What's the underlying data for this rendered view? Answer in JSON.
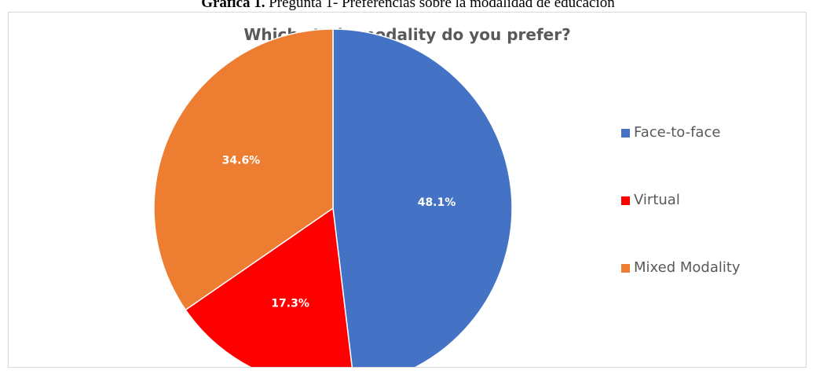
{
  "caption": {
    "bold": "Gráfica 1.",
    "text": " Pregunta 1- Preferencias sobre la modalidad de educación"
  },
  "chart_data": {
    "type": "pie",
    "title": "Which study modality do you prefer?",
    "categories": [
      "Face-to-face",
      "Virtual",
      "Mixed Modality"
    ],
    "values": [
      48.1,
      17.3,
      34.6
    ],
    "labels": [
      "48.1%",
      "17.3%",
      "34.6%"
    ],
    "colors": [
      "#4472c4",
      "#ff0000",
      "#ed7d31"
    ],
    "legend_position": "right"
  }
}
